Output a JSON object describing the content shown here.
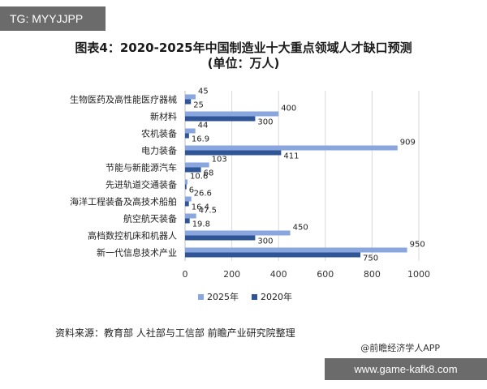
{
  "watermark_top": "TG: MYYJJPP",
  "watermark_bottom": "www.game-kafk8.com",
  "source_note": "资料来源：教育部 人社部与工信部 前瞻产业研究院整理",
  "credit": "@前瞻经济学人APP",
  "colors": {
    "s2025": "#8aa6df",
    "s2020": "#2f5597",
    "grid": "#d9d9d9"
  },
  "chart_data": {
    "type": "bar",
    "orientation": "horizontal",
    "title": "图表4：2020-2025年中国制造业十大重点领域人才缺口预测",
    "subtitle": "(单位：万人)",
    "categories": [
      "生物医药及高性能医疗器械",
      "新材料",
      "农机装备",
      "电力装备",
      "节能与新能源汽车",
      "先进轨道交通装备",
      "海洋工程装备及高技术船舶",
      "航空航天装备",
      "高档数控机床和机器人",
      "新一代信息技术产业"
    ],
    "series": [
      {
        "name": "2025年",
        "values": [
          45,
          400,
          44,
          909,
          103,
          10.6,
          26.6,
          47.5,
          450,
          950
        ]
      },
      {
        "name": "2020年",
        "values": [
          25,
          300,
          16.9,
          411,
          68,
          6,
          16.4,
          19.8,
          300,
          750
        ]
      }
    ],
    "xlim": [
      0,
      1000
    ],
    "xticks": [
      0,
      200,
      400,
      600,
      800,
      1000
    ],
    "grid": true,
    "legend_position": "bottom"
  }
}
